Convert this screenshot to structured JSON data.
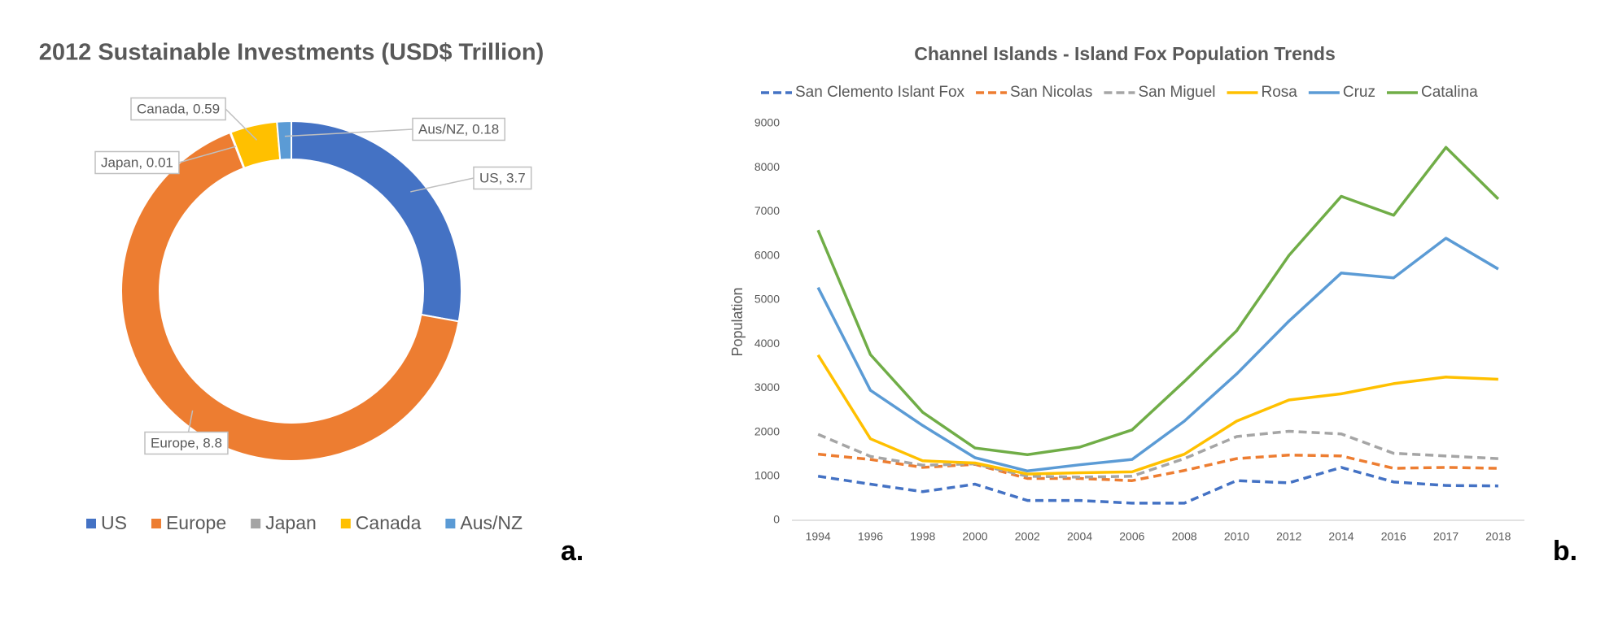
{
  "chart_data": [
    {
      "type": "donut",
      "title": "2012 Sustainable Investments (USD$ Trillion)",
      "panel_label": "a.",
      "categories": [
        "US",
        "Europe",
        "Japan",
        "Canada",
        "Aus/NZ"
      ],
      "values": [
        3.7,
        8.8,
        0.01,
        0.59,
        0.18
      ],
      "value_labels": [
        "US, 3.7",
        "Europe, 8.8",
        "Japan, 0.01",
        "Canada, 0.59",
        "Aus/NZ, 0.18"
      ],
      "colors": [
        "#4472c4",
        "#ed7d31",
        "#a5a5a5",
        "#ffc000",
        "#5b9bd5"
      ],
      "legend": "bottom"
    },
    {
      "type": "line",
      "title": "Channel Islands - Island Fox Population Trends",
      "panel_label": "b.",
      "ylabel": "Population",
      "categories": [
        "1994",
        "1996",
        "1998",
        "2000",
        "2002",
        "2004",
        "2006",
        "2008",
        "2010",
        "2012",
        "2014",
        "2016",
        "2017",
        "2018"
      ],
      "series": [
        {
          "name": "San Clemento Islant Fox",
          "color": "#4472c4",
          "dashed": true,
          "values": [
            1000,
            820,
            650,
            820,
            450,
            450,
            390,
            390,
            900,
            850,
            1200,
            870,
            790,
            780
          ]
        },
        {
          "name": "San Nicolas",
          "color": "#ed7d31",
          "dashed": true,
          "values": [
            1500,
            1380,
            1200,
            1270,
            950,
            950,
            900,
            1130,
            1400,
            1480,
            1460,
            1180,
            1200,
            1180
          ]
        },
        {
          "name": "San Miguel",
          "color": "#a5a5a5",
          "dashed": true,
          "values": [
            1950,
            1450,
            1250,
            1280,
            1000,
            980,
            1000,
            1400,
            1900,
            2020,
            1960,
            1520,
            1460,
            1400
          ]
        },
        {
          "name": "Rosa",
          "color": "#ffc000",
          "dashed": false,
          "values": [
            3750,
            1850,
            1350,
            1300,
            1050,
            1080,
            1100,
            1500,
            2250,
            2730,
            2870,
            3100,
            3250,
            3200
          ]
        },
        {
          "name": "Cruz",
          "color": "#5b9bd5",
          "dashed": false,
          "values": [
            5280,
            2950,
            2150,
            1420,
            1120,
            1260,
            1380,
            2250,
            3320,
            4520,
            5610,
            5500,
            6400,
            5700
          ]
        },
        {
          "name": "Catalina",
          "color": "#70ad47",
          "dashed": false,
          "values": [
            6580,
            3760,
            2450,
            1640,
            1490,
            1660,
            2050,
            3150,
            4300,
            6010,
            7350,
            6920,
            8460,
            7290
          ]
        }
      ],
      "ylim": [
        0,
        9000
      ],
      "yticks": [
        0,
        1000,
        2000,
        3000,
        4000,
        5000,
        6000,
        7000,
        8000,
        9000
      ],
      "grid": false,
      "legend": "top"
    }
  ]
}
